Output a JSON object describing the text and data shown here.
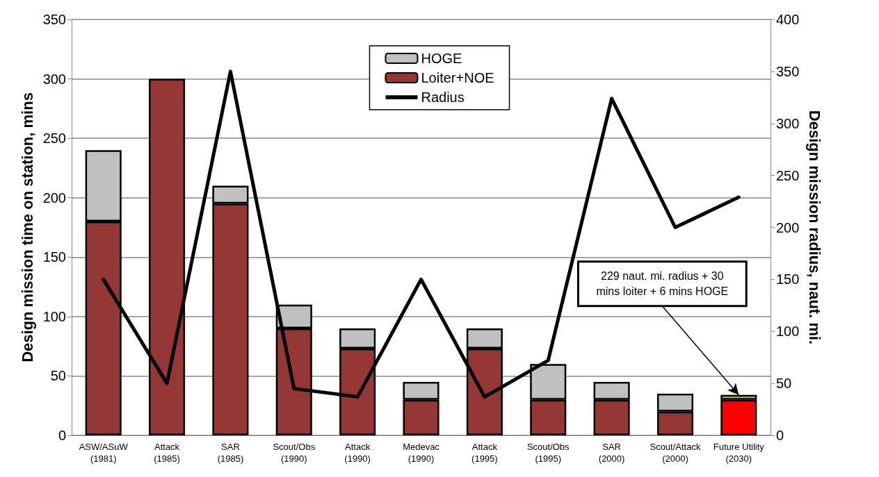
{
  "chart_data": {
    "type": "bar",
    "stacked": true,
    "ylabel": "Design mission time on station, mins",
    "y2label": "Design mission radius, naut. mi.",
    "categories": [
      "ASW/ASuW\n(1981)",
      "Attack\n(1985)",
      "SAR\n(1985)",
      "Scout/Obs\n(1990)",
      "Attack\n(1990)",
      "Medevac\n(1990)",
      "Attack\n(1995)",
      "Scout/Obs\n(1995)",
      "SAR\n(2000)",
      "Scout/Attack\n(2000)",
      "Future Utility\n(2030)"
    ],
    "series": [
      {
        "name": "Loiter+NOE",
        "color": "#953735",
        "colors": [
          "#953735",
          "#953735",
          "#953735",
          "#953735",
          "#953735",
          "#953735",
          "#953735",
          "#953735",
          "#953735",
          "#953735",
          "#ff0000"
        ],
        "values": [
          180,
          300,
          195,
          90,
          73,
          30,
          73,
          30,
          30,
          20,
          30
        ]
      },
      {
        "name": "HOGE",
        "color": "#c0c0c0",
        "colors": [
          "#c0c0c0",
          "#c0c0c0",
          "#c0c0c0",
          "#c0c0c0",
          "#c0c0c0",
          "#c0c0c0",
          "#c0c0c0",
          "#c0c0c0",
          "#c0c0c0",
          "#c0c0c0",
          "#92d050"
        ],
        "values": [
          60,
          0,
          15,
          20,
          17,
          15,
          17,
          30,
          15,
          15,
          4
        ]
      },
      {
        "name": "Radius",
        "type": "line",
        "axis": "y2",
        "color": "#000000",
        "marker": "none",
        "values": [
          150,
          50,
          350,
          45,
          37,
          150,
          37,
          72,
          324,
          200,
          229
        ]
      }
    ],
    "ylim": [
      0,
      350
    ],
    "yticks": [
      0,
      50,
      100,
      150,
      200,
      250,
      300,
      350
    ],
    "y2lim": [
      0,
      400
    ],
    "y2ticks": [
      0,
      50,
      100,
      150,
      200,
      250,
      300,
      350,
      400
    ],
    "grid": "y",
    "legend": "top",
    "annotations": [
      {
        "text": "229 naut. mi. radius + 30\nmins loiter + 6 mins HOGE",
        "x": "Future Utility\n(2030)",
        "y": 34
      }
    ]
  }
}
